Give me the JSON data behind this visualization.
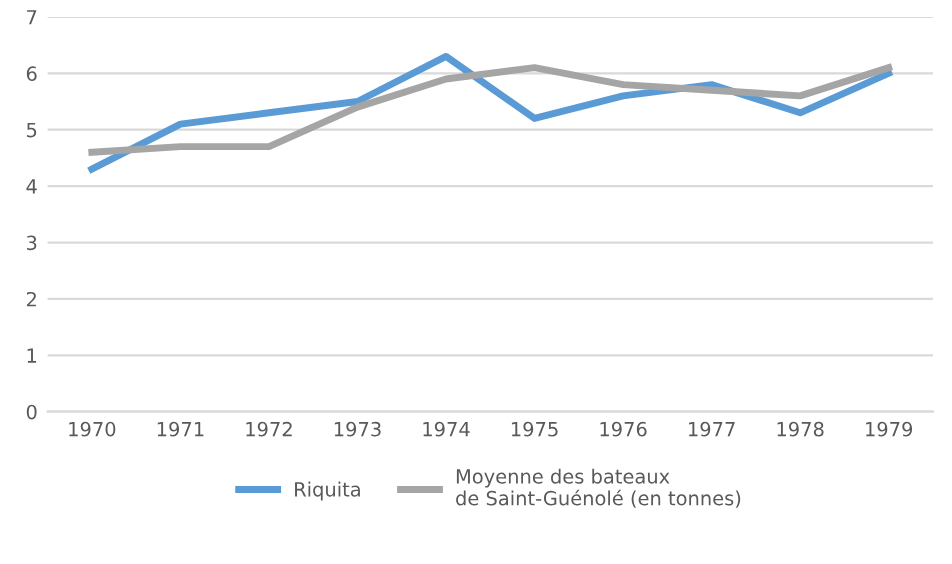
{
  "chart_data": {
    "type": "line",
    "categories": [
      "1970",
      "1971",
      "1972",
      "1973",
      "1974",
      "1975",
      "1976",
      "1977",
      "1978",
      "1979"
    ],
    "series": [
      {
        "name": "Riquita",
        "color": "#5b9bd5",
        "values": [
          4.3,
          5.1,
          5.3,
          5.5,
          6.3,
          5.2,
          5.6,
          5.8,
          5.3,
          6.0
        ]
      },
      {
        "name": "Moyenne des bateaux\nde Saint-Guénolé (en tonnes)",
        "color": "#a5a5a5",
        "values": [
          4.6,
          4.7,
          4.7,
          5.4,
          5.9,
          6.1,
          5.8,
          5.7,
          5.6,
          6.1
        ]
      }
    ],
    "ylim": [
      0,
      7
    ],
    "yticks": [
      0,
      1,
      2,
      3,
      4,
      5,
      6,
      7
    ],
    "grid": "y",
    "legend": "bottom",
    "marker": "none",
    "line_style": "solid"
  }
}
